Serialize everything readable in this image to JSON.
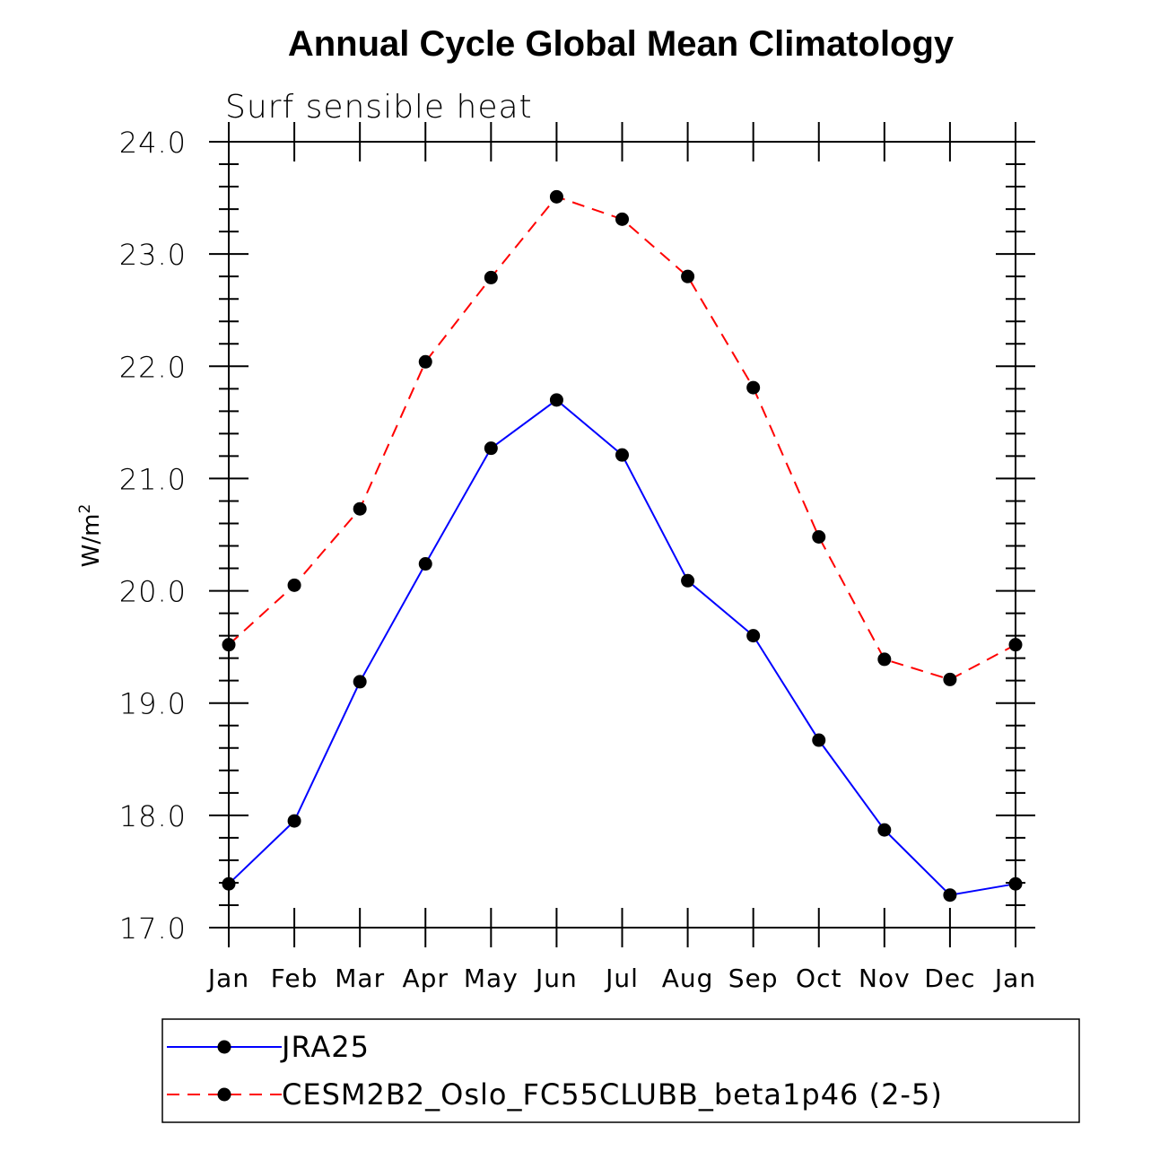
{
  "chart_data": {
    "type": "line",
    "title": "Annual Cycle Global Mean Climatology",
    "subtitle": "Surf sensible heat",
    "ylabel": "W/m",
    "ylabel_superscript": "2",
    "xlabel": "",
    "categories": [
      "Jan",
      "Feb",
      "Mar",
      "Apr",
      "May",
      "Jun",
      "Jul",
      "Aug",
      "Sep",
      "Oct",
      "Nov",
      "Dec",
      "Jan"
    ],
    "ylim": [
      17.0,
      24.0
    ],
    "yticks": [
      "17.0",
      "18.0",
      "19.0",
      "20.0",
      "21.0",
      "22.0",
      "23.0",
      "24.0"
    ],
    "series": [
      {
        "name": "JRA25",
        "color": "#0000ff",
        "dash": "solid",
        "values": [
          17.39,
          17.95,
          19.19,
          20.24,
          21.27,
          21.7,
          21.21,
          20.09,
          19.6,
          18.67,
          17.87,
          17.29,
          17.39
        ]
      },
      {
        "name": "CESM2B2_Oslo_FC55CLUBB_beta1p46 (2-5)",
        "color": "#ff0000",
        "dash": "dashed",
        "values": [
          19.52,
          20.05,
          20.73,
          22.04,
          22.79,
          23.51,
          23.31,
          22.8,
          21.81,
          20.48,
          19.39,
          19.21,
          19.52
        ]
      }
    ],
    "grid": false,
    "legend": "bottom"
  }
}
